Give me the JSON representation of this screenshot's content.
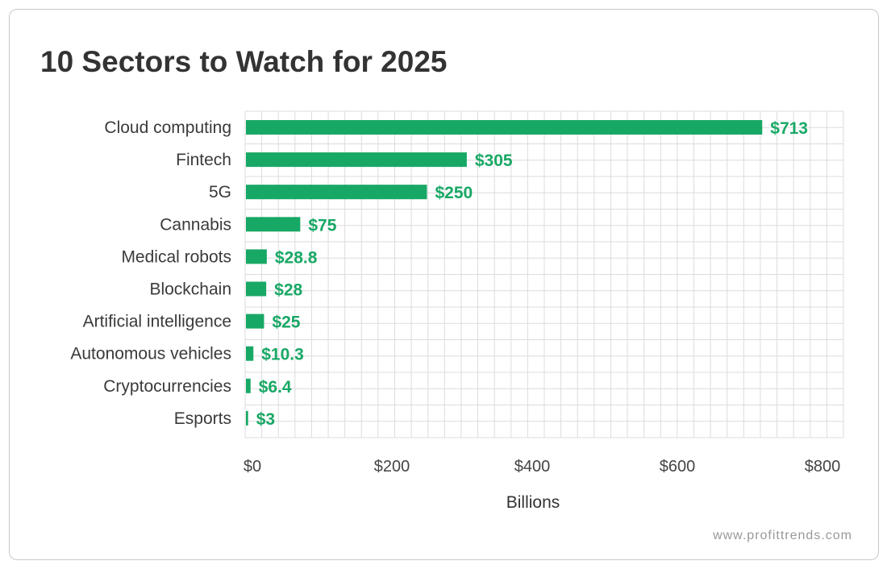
{
  "chart_data": {
    "type": "bar",
    "orientation": "horizontal",
    "title": "10 Sectors to Watch for 2025",
    "categories": [
      "Cloud computing",
      "Fintech",
      "5G",
      "Cannabis",
      "Medical robots",
      "Blockchain",
      "Artificial intelligence",
      "Autonomous vehicles",
      "Cryptocurrencies",
      "Esports"
    ],
    "values": [
      713,
      305,
      250,
      75,
      28.8,
      28,
      25,
      10.3,
      6.4,
      3
    ],
    "data_labels": [
      "$713",
      "$305",
      "$250",
      "$75",
      "$28.8",
      "$28",
      "$25",
      "$10.3",
      "$6.4",
      "$3"
    ],
    "xlabel": "Billions",
    "ylabel": "",
    "xlim": [
      0,
      800
    ],
    "x_ticks": [
      "$0",
      "$200",
      "$400",
      "$600",
      "$800"
    ],
    "grid": true,
    "bar_color": "#18a865"
  },
  "footer": {
    "credit": "www.profittrends.com"
  }
}
